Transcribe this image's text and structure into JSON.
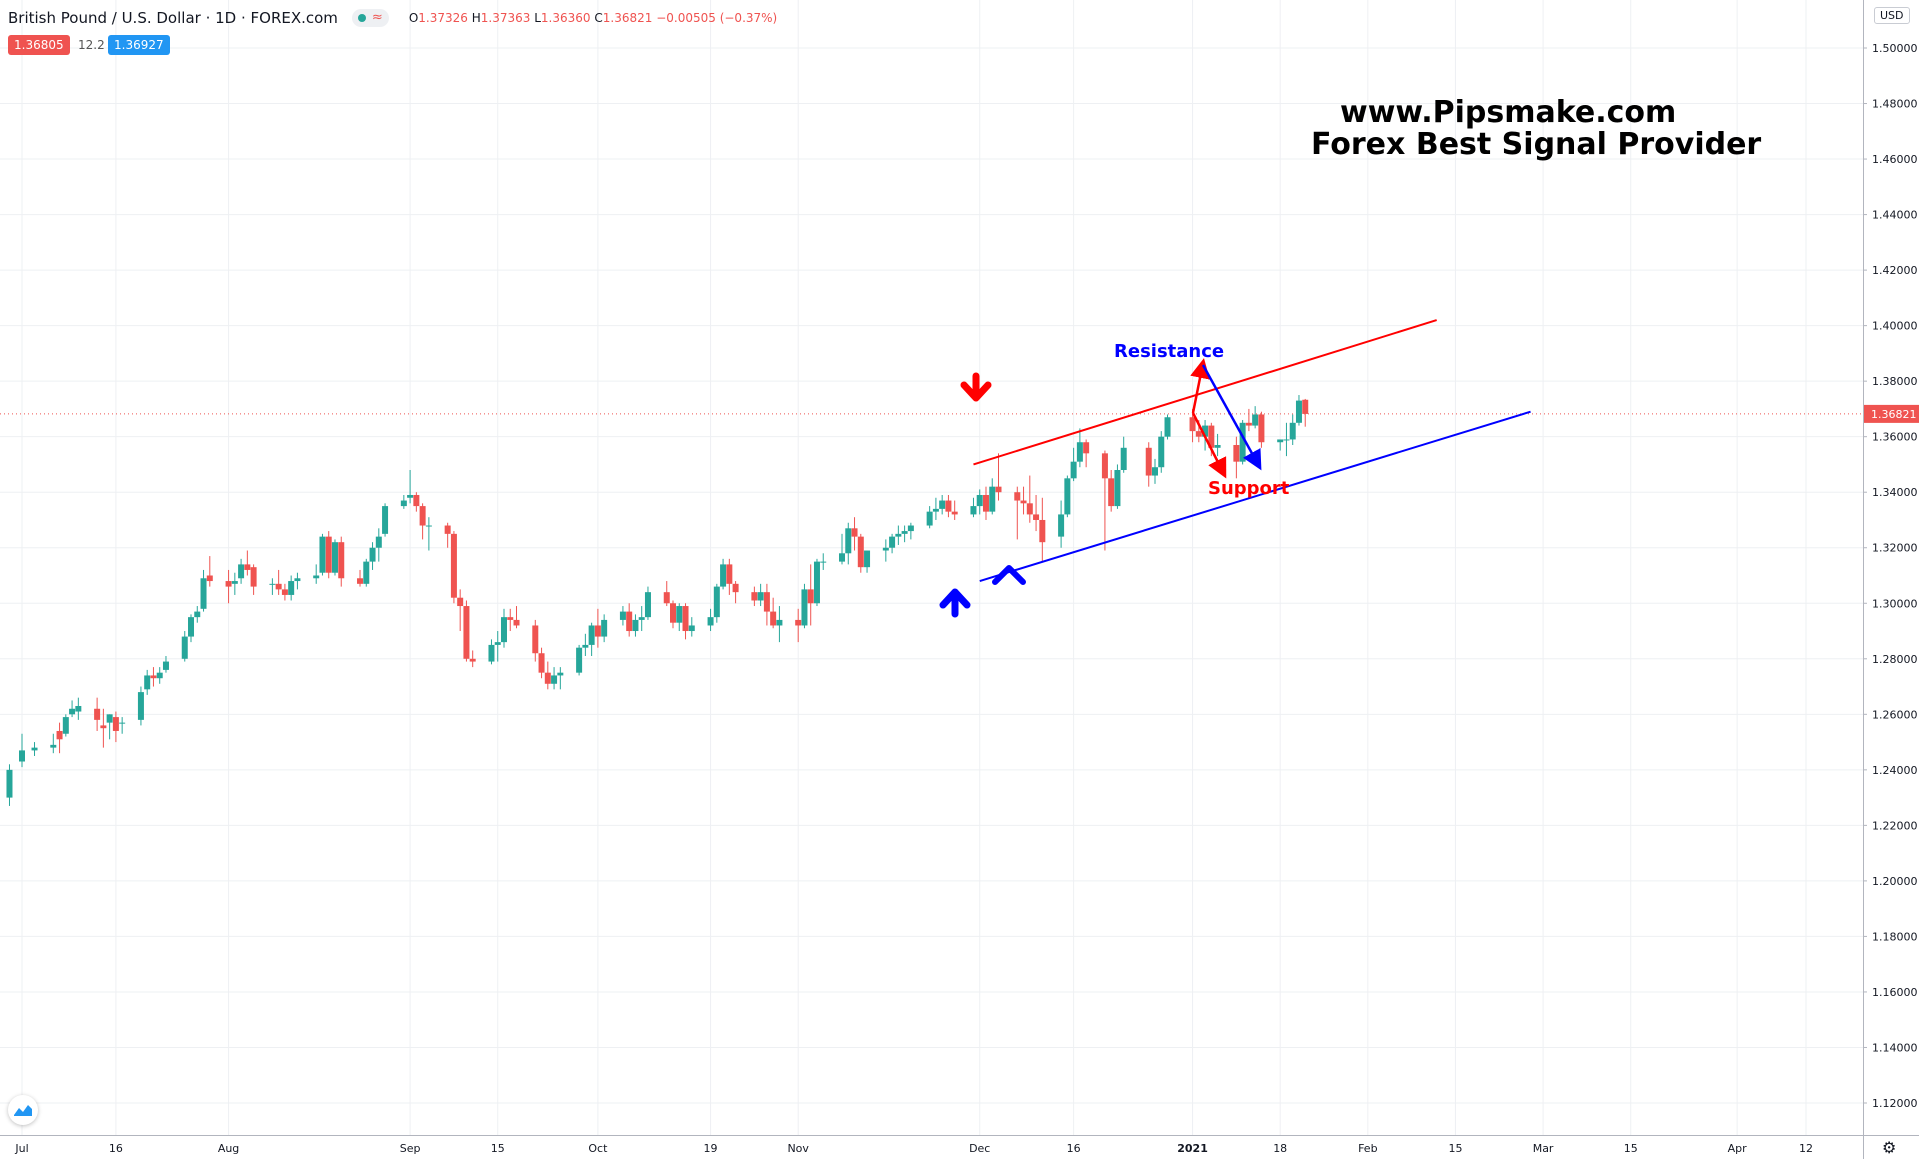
{
  "header": {
    "symbol": "British Pound / U.S. Dollar · 1D · FOREX.com",
    "ohlc": [
      {
        "k": "O",
        "v": "1.37326"
      },
      {
        "k": "H",
        "v": "1.37363"
      },
      {
        "k": "L",
        "v": "1.36360"
      },
      {
        "k": "C",
        "v": "1.36821"
      }
    ],
    "change": "−0.00505 (−0.37%)",
    "sell_price": "1.36805",
    "spread": "12.2",
    "buy_price": "1.36927",
    "currency": "USD"
  },
  "watermark": {
    "line1": "www.Pipsmake.com",
    "line2": "Forex Best Signal Provider"
  },
  "colors": {
    "up": "#26a69a",
    "down": "#ef5350",
    "resistance": "#ff0000",
    "support": "#0000ff",
    "label_blue": "#0000ff",
    "label_red": "#ff0000",
    "grid": "#eef0f3"
  },
  "chart_data": {
    "type": "candlestick",
    "title": "British Pound / U.S. Dollar · 1D · FOREX.com",
    "ylim": [
      1.11,
      1.51
    ],
    "y_ticks": [
      "1.50000",
      "1.48000",
      "1.46000",
      "1.44000",
      "1.42000",
      "1.40000",
      "1.38000",
      "1.36000",
      "1.34000",
      "1.32000",
      "1.30000",
      "1.28000",
      "1.26000",
      "1.24000",
      "1.22000",
      "1.20000",
      "1.18000",
      "1.16000",
      "1.14000",
      "1.12000"
    ],
    "x_ticks": [
      "Jul",
      "16",
      "Aug",
      "Sep",
      "15",
      "Oct",
      "19",
      "Nov",
      "Dec",
      "16",
      "2021",
      "18",
      "Feb",
      "15",
      "Mar",
      "15",
      "Apr",
      "12"
    ],
    "x_tick_dates": [
      "2020-07-01",
      "2020-07-16",
      "2020-08-03",
      "2020-09-01",
      "2020-09-15",
      "2020-10-01",
      "2020-10-19",
      "2020-11-02",
      "2020-12-01",
      "2020-12-16",
      "2021-01-04",
      "2021-01-18",
      "2021-02-01",
      "2021-02-15",
      "2021-03-01",
      "2021-03-15",
      "2021-04-01",
      "2021-04-12"
    ],
    "last_price": "1.36821",
    "candles": [
      [
        "2020-06-29",
        1.23,
        1.242,
        1.227,
        1.24
      ],
      [
        "2020-07-01",
        1.243,
        1.253,
        1.241,
        1.247
      ],
      [
        "2020-07-03",
        1.247,
        1.25,
        1.245,
        1.248
      ],
      [
        "2020-07-06",
        1.248,
        1.253,
        1.246,
        1.249
      ],
      [
        "2020-07-07",
        1.254,
        1.257,
        1.246,
        1.251
      ],
      [
        "2020-07-08",
        1.253,
        1.26,
        1.252,
        1.259
      ],
      [
        "2020-07-09",
        1.26,
        1.265,
        1.259,
        1.262
      ],
      [
        "2020-07-10",
        1.261,
        1.266,
        1.258,
        1.263
      ],
      [
        "2020-07-13",
        1.262,
        1.266,
        1.254,
        1.258
      ],
      [
        "2020-07-14",
        1.256,
        1.262,
        1.248,
        1.255
      ],
      [
        "2020-07-15",
        1.257,
        1.26,
        1.251,
        1.26
      ],
      [
        "2020-07-16",
        1.259,
        1.261,
        1.25,
        1.254
      ],
      [
        "2020-07-17",
        1.257,
        1.259,
        1.253,
        1.257
      ],
      [
        "2020-07-20",
        1.258,
        1.27,
        1.256,
        1.268
      ],
      [
        "2020-07-21",
        1.269,
        1.276,
        1.267,
        1.274
      ],
      [
        "2020-07-22",
        1.274,
        1.277,
        1.27,
        1.273
      ],
      [
        "2020-07-23",
        1.273,
        1.277,
        1.271,
        1.275
      ],
      [
        "2020-07-24",
        1.276,
        1.281,
        1.275,
        1.279
      ],
      [
        "2020-07-27",
        1.28,
        1.29,
        1.279,
        1.288
      ],
      [
        "2020-07-28",
        1.288,
        1.296,
        1.286,
        1.295
      ],
      [
        "2020-07-29",
        1.295,
        1.299,
        1.293,
        1.297
      ],
      [
        "2020-07-30",
        1.298,
        1.312,
        1.297,
        1.309
      ],
      [
        "2020-07-31",
        1.31,
        1.317,
        1.306,
        1.308
      ],
      [
        "2020-08-03",
        1.308,
        1.312,
        1.3,
        1.306
      ],
      [
        "2020-08-04",
        1.307,
        1.311,
        1.303,
        1.308
      ],
      [
        "2020-08-05",
        1.309,
        1.316,
        1.307,
        1.314
      ],
      [
        "2020-08-06",
        1.314,
        1.319,
        1.31,
        1.312
      ],
      [
        "2020-08-07",
        1.313,
        1.314,
        1.303,
        1.306
      ],
      [
        "2020-08-10",
        1.307,
        1.309,
        1.303,
        1.307
      ],
      [
        "2020-08-11",
        1.307,
        1.312,
        1.303,
        1.305
      ],
      [
        "2020-08-12",
        1.305,
        1.307,
        1.301,
        1.303
      ],
      [
        "2020-08-13",
        1.303,
        1.31,
        1.301,
        1.308
      ],
      [
        "2020-08-14",
        1.308,
        1.311,
        1.305,
        1.309
      ],
      [
        "2020-08-17",
        1.309,
        1.314,
        1.307,
        1.31
      ],
      [
        "2020-08-18",
        1.311,
        1.325,
        1.31,
        1.324
      ],
      [
        "2020-08-19",
        1.324,
        1.326,
        1.309,
        1.311
      ],
      [
        "2020-08-20",
        1.311,
        1.323,
        1.31,
        1.322
      ],
      [
        "2020-08-21",
        1.322,
        1.324,
        1.306,
        1.309
      ],
      [
        "2020-08-24",
        1.309,
        1.312,
        1.306,
        1.307
      ],
      [
        "2020-08-25",
        1.307,
        1.316,
        1.306,
        1.315
      ],
      [
        "2020-08-26",
        1.315,
        1.322,
        1.312,
        1.32
      ],
      [
        "2020-08-27",
        1.32,
        1.327,
        1.315,
        1.324
      ],
      [
        "2020-08-28",
        1.325,
        1.336,
        1.324,
        1.335
      ],
      [
        "2020-08-31",
        1.335,
        1.339,
        1.334,
        1.337
      ],
      [
        "2020-09-01",
        1.338,
        1.348,
        1.336,
        1.339
      ],
      [
        "2020-09-02",
        1.339,
        1.34,
        1.333,
        1.335
      ],
      [
        "2020-09-03",
        1.335,
        1.336,
        1.323,
        1.328
      ],
      [
        "2020-09-04",
        1.328,
        1.331,
        1.319,
        1.328
      ],
      [
        "2020-09-07",
        1.328,
        1.329,
        1.32,
        1.325
      ],
      [
        "2020-09-08",
        1.325,
        1.326,
        1.3,
        1.302
      ],
      [
        "2020-09-09",
        1.302,
        1.305,
        1.29,
        1.299
      ],
      [
        "2020-09-10",
        1.299,
        1.301,
        1.279,
        1.28
      ],
      [
        "2020-09-11",
        1.28,
        1.283,
        1.277,
        1.279
      ],
      [
        "2020-09-14",
        1.279,
        1.287,
        1.278,
        1.285
      ],
      [
        "2020-09-15",
        1.285,
        1.29,
        1.279,
        1.286
      ],
      [
        "2020-09-16",
        1.286,
        1.298,
        1.284,
        1.295
      ],
      [
        "2020-09-17",
        1.295,
        1.298,
        1.29,
        1.294
      ],
      [
        "2020-09-18",
        1.294,
        1.299,
        1.291,
        1.292
      ],
      [
        "2020-09-21",
        1.292,
        1.294,
        1.279,
        1.282
      ],
      [
        "2020-09-22",
        1.282,
        1.284,
        1.273,
        1.275
      ],
      [
        "2020-09-23",
        1.275,
        1.279,
        1.269,
        1.271
      ],
      [
        "2020-09-24",
        1.271,
        1.277,
        1.269,
        1.274
      ],
      [
        "2020-09-25",
        1.274,
        1.277,
        1.269,
        1.275
      ],
      [
        "2020-09-28",
        1.275,
        1.285,
        1.274,
        1.284
      ],
      [
        "2020-09-29",
        1.284,
        1.289,
        1.281,
        1.285
      ],
      [
        "2020-09-30",
        1.285,
        1.293,
        1.281,
        1.292
      ],
      [
        "2020-10-01",
        1.292,
        1.298,
        1.284,
        1.288
      ],
      [
        "2020-10-02",
        1.288,
        1.296,
        1.286,
        1.294
      ],
      [
        "2020-10-05",
        1.294,
        1.299,
        1.292,
        1.297
      ],
      [
        "2020-10-06",
        1.297,
        1.3,
        1.288,
        1.29
      ],
      [
        "2020-10-07",
        1.29,
        1.296,
        1.288,
        1.294
      ],
      [
        "2020-10-08",
        1.294,
        1.299,
        1.29,
        1.295
      ],
      [
        "2020-10-09",
        1.295,
        1.306,
        1.294,
        1.304
      ],
      [
        "2020-10-12",
        1.304,
        1.308,
        1.299,
        1.3
      ],
      [
        "2020-10-13",
        1.3,
        1.301,
        1.291,
        1.293
      ],
      [
        "2020-10-14",
        1.293,
        1.3,
        1.29,
        1.299
      ],
      [
        "2020-10-15",
        1.299,
        1.3,
        1.287,
        1.29
      ],
      [
        "2020-10-16",
        1.29,
        1.295,
        1.288,
        1.292
      ],
      [
        "2020-10-19",
        1.292,
        1.298,
        1.29,
        1.295
      ],
      [
        "2020-10-20",
        1.295,
        1.307,
        1.293,
        1.306
      ],
      [
        "2020-10-21",
        1.306,
        1.316,
        1.305,
        1.314
      ],
      [
        "2020-10-22",
        1.314,
        1.316,
        1.303,
        1.307
      ],
      [
        "2020-10-23",
        1.307,
        1.308,
        1.3,
        1.304
      ],
      [
        "2020-10-26",
        1.304,
        1.306,
        1.299,
        1.301
      ],
      [
        "2020-10-27",
        1.301,
        1.307,
        1.299,
        1.304
      ],
      [
        "2020-10-28",
        1.304,
        1.307,
        1.292,
        1.297
      ],
      [
        "2020-10-29",
        1.297,
        1.302,
        1.291,
        1.292
      ],
      [
        "2020-10-30",
        1.292,
        1.299,
        1.286,
        1.294
      ],
      [
        "2020-11-02",
        1.294,
        1.298,
        1.286,
        1.292
      ],
      [
        "2020-11-03",
        1.292,
        1.307,
        1.291,
        1.305
      ],
      [
        "2020-11-04",
        1.305,
        1.314,
        1.292,
        1.3
      ],
      [
        "2020-11-05",
        1.3,
        1.316,
        1.299,
        1.315
      ],
      [
        "2020-11-06",
        1.315,
        1.318,
        1.312,
        1.315
      ],
      [
        "2020-11-09",
        1.315,
        1.325,
        1.314,
        1.318
      ],
      [
        "2020-11-10",
        1.318,
        1.329,
        1.314,
        1.327
      ],
      [
        "2020-11-11",
        1.327,
        1.331,
        1.319,
        1.324
      ],
      [
        "2020-11-12",
        1.324,
        1.325,
        1.311,
        1.313
      ],
      [
        "2020-11-13",
        1.313,
        1.319,
        1.311,
        1.319
      ],
      [
        "2020-11-16",
        1.319,
        1.323,
        1.315,
        1.32
      ],
      [
        "2020-11-17",
        1.32,
        1.325,
        1.318,
        1.324
      ],
      [
        "2020-11-18",
        1.324,
        1.328,
        1.321,
        1.325
      ],
      [
        "2020-11-19",
        1.325,
        1.328,
        1.322,
        1.326
      ],
      [
        "2020-11-20",
        1.326,
        1.329,
        1.323,
        1.328
      ],
      [
        "2020-11-23",
        1.328,
        1.335,
        1.327,
        1.333
      ],
      [
        "2020-11-24",
        1.333,
        1.338,
        1.33,
        1.334
      ],
      [
        "2020-11-25",
        1.334,
        1.339,
        1.332,
        1.337
      ],
      [
        "2020-11-26",
        1.337,
        1.339,
        1.331,
        1.333
      ],
      [
        "2020-11-27",
        1.333,
        1.337,
        1.33,
        1.332
      ],
      [
        "2020-11-30",
        1.332,
        1.338,
        1.331,
        1.335
      ],
      [
        "2020-12-01",
        1.335,
        1.341,
        1.332,
        1.339
      ],
      [
        "2020-12-02",
        1.339,
        1.342,
        1.33,
        1.333
      ],
      [
        "2020-12-03",
        1.333,
        1.345,
        1.332,
        1.342
      ],
      [
        "2020-12-04",
        1.342,
        1.354,
        1.337,
        1.34
      ],
      [
        "2020-12-07",
        1.34,
        1.342,
        1.323,
        1.337
      ],
      [
        "2020-12-08",
        1.337,
        1.342,
        1.332,
        1.336
      ],
      [
        "2020-12-09",
        1.336,
        1.346,
        1.329,
        1.332
      ],
      [
        "2020-12-10",
        1.332,
        1.339,
        1.326,
        1.33
      ],
      [
        "2020-12-11",
        1.33,
        1.338,
        1.315,
        1.322
      ],
      [
        "2020-12-14",
        1.324,
        1.337,
        1.32,
        1.332
      ],
      [
        "2020-12-15",
        1.332,
        1.346,
        1.331,
        1.345
      ],
      [
        "2020-12-16",
        1.345,
        1.356,
        1.344,
        1.351
      ],
      [
        "2020-12-17",
        1.351,
        1.363,
        1.349,
        1.358
      ],
      [
        "2020-12-18",
        1.358,
        1.359,
        1.349,
        1.354
      ],
      [
        "2020-12-21",
        1.354,
        1.355,
        1.319,
        1.345
      ],
      [
        "2020-12-22",
        1.345,
        1.348,
        1.333,
        1.335
      ],
      [
        "2020-12-23",
        1.335,
        1.35,
        1.334,
        1.348
      ],
      [
        "2020-12-24",
        1.348,
        1.36,
        1.347,
        1.356
      ],
      [
        "2020-12-28",
        1.356,
        1.358,
        1.342,
        1.346
      ],
      [
        "2020-12-29",
        1.346,
        1.352,
        1.343,
        1.349
      ],
      [
        "2020-12-30",
        1.349,
        1.362,
        1.347,
        1.36
      ],
      [
        "2020-12-31",
        1.36,
        1.368,
        1.359,
        1.367
      ],
      [
        "2021-01-04",
        1.367,
        1.37,
        1.358,
        1.362
      ],
      [
        "2021-01-05",
        1.362,
        1.366,
        1.358,
        1.36
      ],
      [
        "2021-01-06",
        1.36,
        1.366,
        1.355,
        1.364
      ],
      [
        "2021-01-07",
        1.364,
        1.365,
        1.353,
        1.356
      ],
      [
        "2021-01-08",
        1.356,
        1.361,
        1.353,
        1.357
      ],
      [
        "2021-01-11",
        1.357,
        1.36,
        1.345,
        1.351
      ],
      [
        "2021-01-12",
        1.351,
        1.366,
        1.35,
        1.365
      ],
      [
        "2021-01-13",
        1.365,
        1.37,
        1.362,
        1.364
      ],
      [
        "2021-01-14",
        1.364,
        1.371,
        1.363,
        1.368
      ],
      [
        "2021-01-15",
        1.368,
        1.369,
        1.356,
        1.358
      ],
      [
        "2021-01-18",
        1.358,
        1.359,
        1.355,
        1.359
      ],
      [
        "2021-01-19",
        1.359,
        1.365,
        1.353,
        1.359
      ],
      [
        "2021-01-20",
        1.359,
        1.368,
        1.357,
        1.365
      ],
      [
        "2021-01-21",
        1.365,
        1.375,
        1.364,
        1.373
      ],
      [
        "2021-01-22",
        1.3733,
        1.3736,
        1.3636,
        1.3682
      ]
    ],
    "annotations": {
      "resistance_line": {
        "start": [
          "2020-11-30",
          1.35
        ],
        "end": [
          "2021-02-12",
          1.402
        ]
      },
      "support_line": {
        "start": [
          "2020-12-01",
          1.308
        ],
        "end": [
          "2021-02-27",
          1.369
        ]
      },
      "resistance_label": "Resistance",
      "support_label": "Support"
    }
  }
}
